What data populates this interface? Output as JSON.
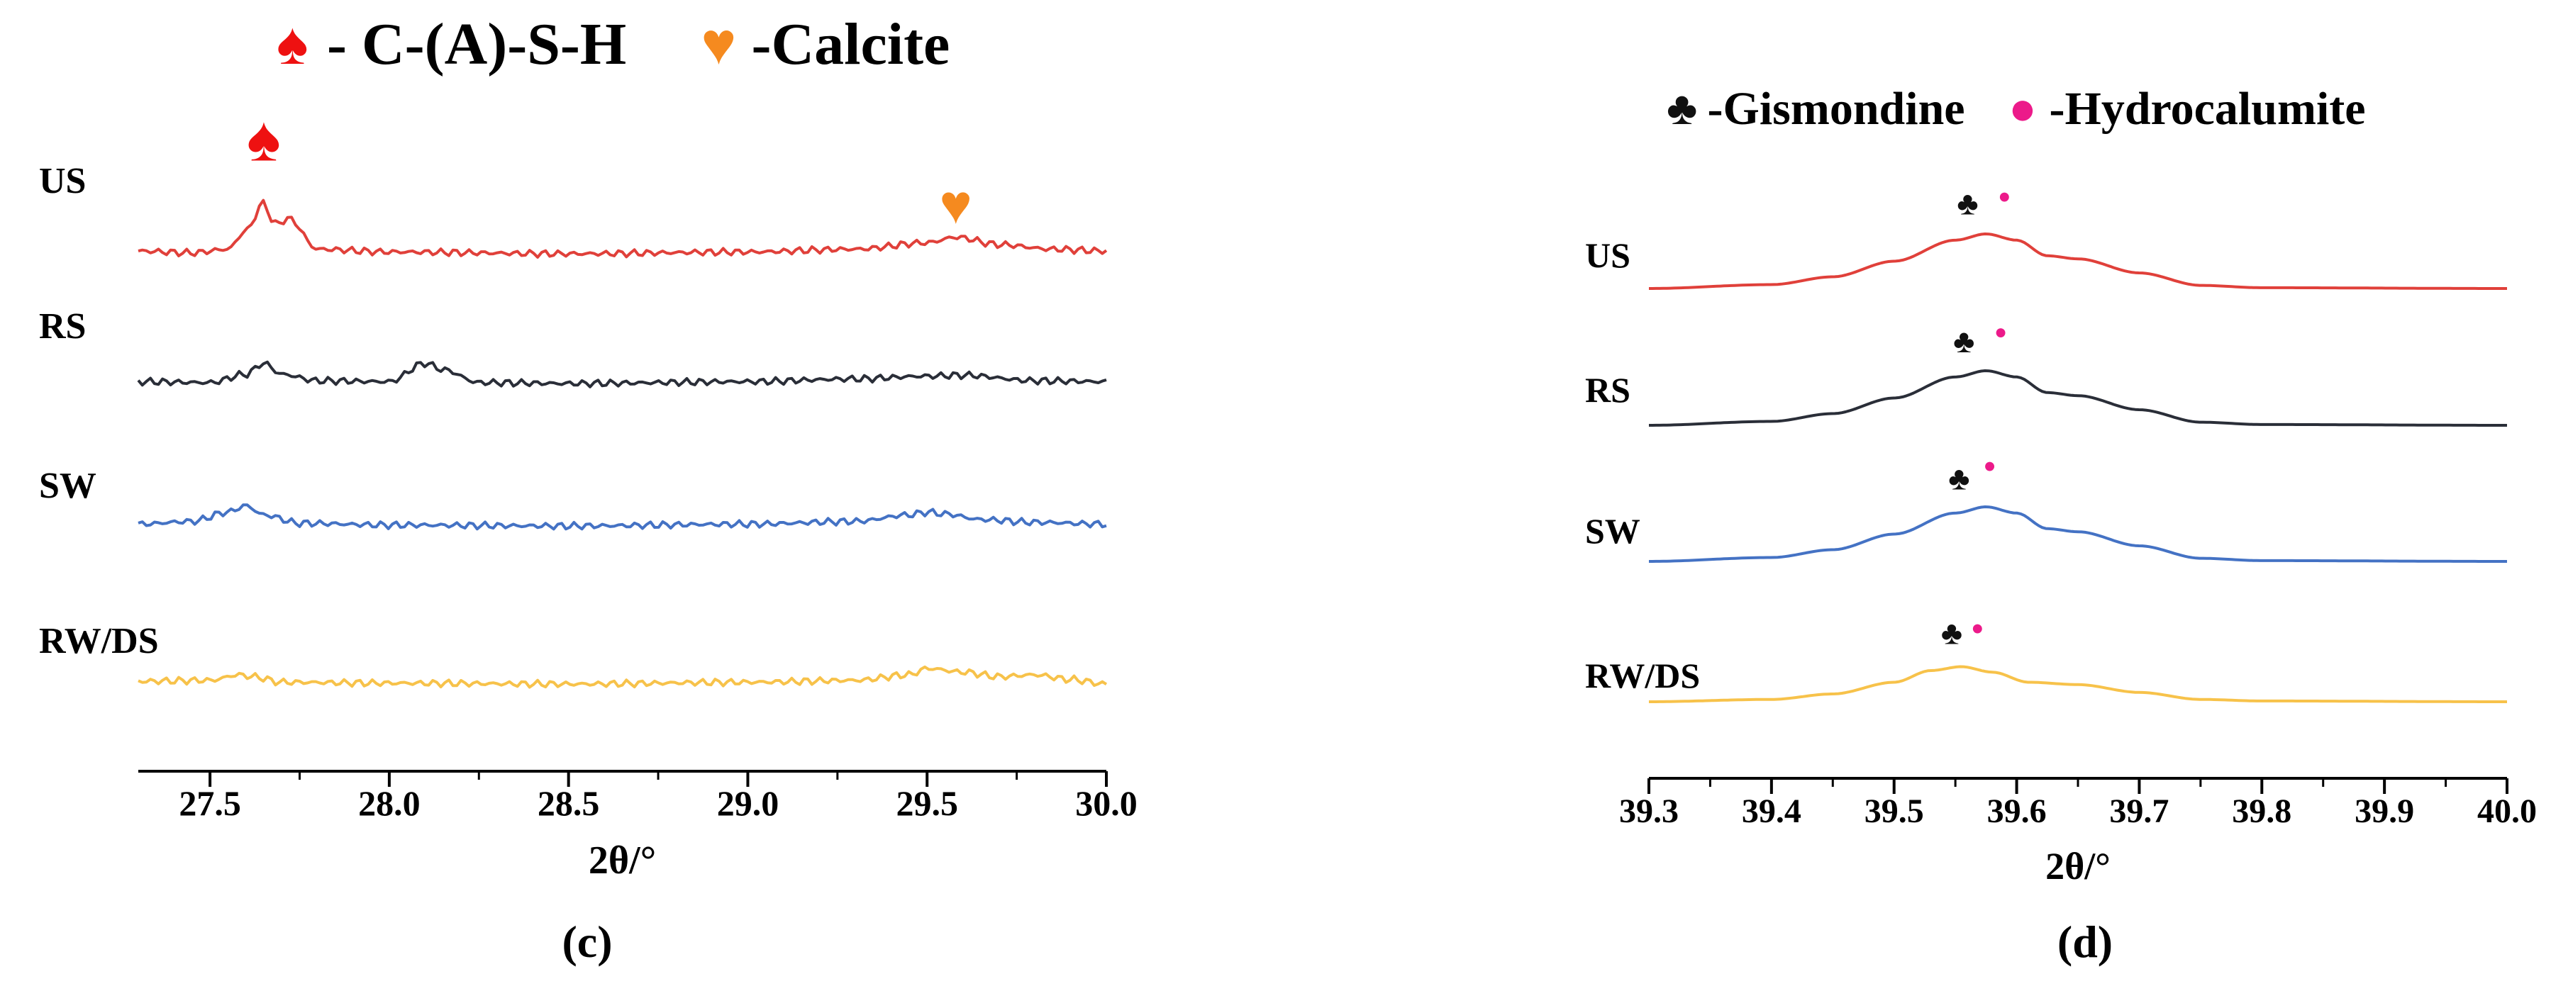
{
  "colors": {
    "US": "#e0403a",
    "RS": "#2a2e38",
    "SW": "#4472c4",
    "RW/DS": "#f7c24a",
    "spade_marker": "#ee1111",
    "heart_marker": "#f58a1f",
    "club_marker": "#111111",
    "dot_marker": "#ec1a8a",
    "axis": "#000000"
  },
  "chart_data": [
    {
      "type": "line",
      "panel_label": "(c)",
      "legend": [
        {
          "symbol": "spade-icon",
          "glyph": "♠",
          "label": "- C-(A)-S-H"
        },
        {
          "symbol": "heart-icon",
          "glyph": "♥",
          "label": "-Calcite"
        }
      ],
      "xlabel": "2θ/°",
      "xlim": [
        27.3,
        30.0
      ],
      "xticks": [
        "27.5",
        "28.0",
        "28.5",
        "29.0",
        "29.5",
        "30.0"
      ],
      "series": [
        {
          "name": "US",
          "baseline": 0,
          "x": [
            27.3,
            27.45,
            27.55,
            27.6,
            27.65,
            27.68,
            27.72,
            27.8,
            28.0,
            28.5,
            29.0,
            29.3,
            29.5,
            29.58,
            29.7,
            29.85,
            30.0
          ],
          "y": [
            0.03,
            0.01,
            0.05,
            0.25,
            0.55,
            0.32,
            0.38,
            0.05,
            0.02,
            0.0,
            0.02,
            0.05,
            0.12,
            0.18,
            0.1,
            0.05,
            0.03
          ]
        },
        {
          "name": "RS",
          "baseline": 1,
          "x": [
            27.3,
            27.5,
            27.6,
            27.65,
            27.7,
            27.8,
            28.0,
            28.1,
            28.15,
            28.25,
            28.5,
            29.0,
            29.3,
            29.5,
            29.6,
            29.8,
            30.0
          ],
          "y": [
            0.02,
            0.01,
            0.1,
            0.22,
            0.1,
            0.03,
            0.02,
            0.22,
            0.15,
            0.01,
            0.0,
            0.02,
            0.05,
            0.08,
            0.09,
            0.03,
            0.02
          ]
        },
        {
          "name": "SW",
          "baseline": 2,
          "x": [
            27.3,
            27.45,
            27.55,
            27.6,
            27.65,
            27.75,
            28.0,
            28.5,
            29.0,
            29.3,
            29.45,
            29.5,
            29.55,
            29.65,
            29.8,
            30.0
          ],
          "y": [
            0.02,
            0.05,
            0.15,
            0.22,
            0.12,
            0.03,
            0.01,
            0.0,
            0.02,
            0.05,
            0.12,
            0.15,
            0.13,
            0.07,
            0.04,
            0.02
          ]
        },
        {
          "name": "RW/DS",
          "baseline": 3,
          "x": [
            27.3,
            27.5,
            27.58,
            27.62,
            27.7,
            28.0,
            28.5,
            29.0,
            29.3,
            29.45,
            29.5,
            29.6,
            29.7,
            29.8,
            29.9,
            30.0
          ],
          "y": [
            0.03,
            0.04,
            0.1,
            0.08,
            0.02,
            0.01,
            0.0,
            0.02,
            0.04,
            0.1,
            0.17,
            0.13,
            0.08,
            0.1,
            0.05,
            0.0
          ]
        }
      ],
      "markers": [
        {
          "symbol": "spade",
          "glyph": "♠",
          "x": 27.65,
          "series": "US"
        },
        {
          "symbol": "heart",
          "glyph": "♥",
          "x": 29.58,
          "series": "US"
        }
      ]
    },
    {
      "type": "line",
      "panel_label": "(d)",
      "legend": [
        {
          "symbol": "club-icon",
          "glyph": "♣",
          "label": "-Gismondine"
        },
        {
          "symbol": "dot-icon",
          "glyph": "●",
          "label": "-Hydrocalumite"
        }
      ],
      "xlabel": "2θ/°",
      "xlim": [
        39.3,
        40.0
      ],
      "xticks": [
        "39.3",
        "39.4",
        "39.5",
        "39.6",
        "39.7",
        "39.8",
        "39.9",
        "40.0"
      ],
      "series": [
        {
          "name": "US",
          "baseline": 0,
          "x": [
            39.3,
            39.4,
            39.45,
            39.5,
            39.55,
            39.575,
            39.6,
            39.625,
            39.65,
            39.7,
            39.75,
            39.8,
            40.0
          ],
          "y": [
            0.0,
            0.05,
            0.15,
            0.35,
            0.62,
            0.7,
            0.62,
            0.42,
            0.38,
            0.2,
            0.04,
            0.01,
            0.0
          ]
        },
        {
          "name": "RS",
          "baseline": 1,
          "x": [
            39.3,
            39.4,
            39.45,
            39.5,
            39.55,
            39.575,
            39.6,
            39.625,
            39.65,
            39.7,
            39.75,
            39.8,
            40.0
          ],
          "y": [
            0.0,
            0.05,
            0.15,
            0.35,
            0.62,
            0.7,
            0.62,
            0.42,
            0.38,
            0.2,
            0.04,
            0.01,
            0.0
          ]
        },
        {
          "name": "SW",
          "baseline": 2,
          "x": [
            39.3,
            39.4,
            39.45,
            39.5,
            39.55,
            39.575,
            39.6,
            39.625,
            39.65,
            39.7,
            39.75,
            39.8,
            40.0
          ],
          "y": [
            0.0,
            0.05,
            0.15,
            0.35,
            0.62,
            0.7,
            0.62,
            0.42,
            0.38,
            0.2,
            0.04,
            0.01,
            0.0
          ]
        },
        {
          "name": "RW/DS",
          "baseline": 3,
          "x": [
            39.3,
            39.4,
            39.45,
            39.5,
            39.53,
            39.555,
            39.58,
            39.61,
            39.65,
            39.7,
            39.75,
            39.8,
            40.0
          ],
          "y": [
            0.0,
            0.03,
            0.1,
            0.25,
            0.4,
            0.45,
            0.38,
            0.25,
            0.22,
            0.12,
            0.03,
            0.01,
            0.0
          ]
        }
      ],
      "markers": [
        {
          "symbol": "club",
          "glyph": "♣",
          "x": 39.56,
          "series": "US"
        },
        {
          "symbol": "dot",
          "glyph": "●",
          "x": 39.59,
          "series": "US"
        },
        {
          "symbol": "club",
          "glyph": "♣",
          "x": 39.557,
          "series": "RS"
        },
        {
          "symbol": "dot",
          "glyph": "●",
          "x": 39.587,
          "series": "RS"
        },
        {
          "symbol": "club",
          "glyph": "♣",
          "x": 39.553,
          "series": "SW"
        },
        {
          "symbol": "dot",
          "glyph": "●",
          "x": 39.578,
          "series": "SW"
        },
        {
          "symbol": "club",
          "glyph": "♣",
          "x": 39.547,
          "series": "RW/DS"
        },
        {
          "symbol": "dot",
          "glyph": "●",
          "x": 39.568,
          "series": "RW/DS"
        }
      ]
    }
  ]
}
